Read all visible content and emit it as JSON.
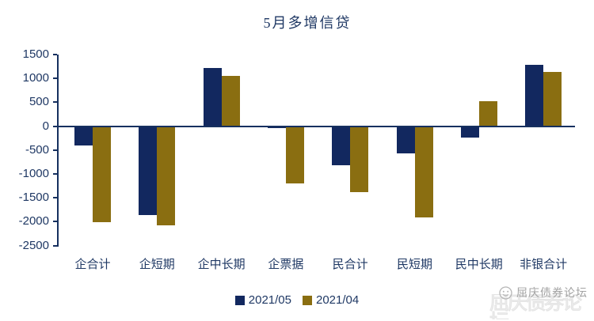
{
  "title": "5月多增信贷",
  "watermark": {
    "text": "屈庆债券论坛",
    "logo": "smiley-logo"
  },
  "colors": {
    "navy": "#12285f",
    "gold": "#8a6e11",
    "text": "#1f3864",
    "axis": "#16305f",
    "watermark_gray": "#a3a3a3"
  },
  "chart_data": {
    "type": "bar",
    "title": "5月多增信贷",
    "categories": [
      "企合计",
      "企短期",
      "企中长期",
      "企票据",
      "民合计",
      "民短期",
      "民中长期",
      "非银合计"
    ],
    "series": [
      {
        "name": "2021/05",
        "color": "#12285f",
        "values": [
          -402,
          -1855,
          1223,
          -48,
          -811,
          -575,
          -236,
          1278
        ]
      },
      {
        "name": "2021/04",
        "color": "#8a6e11",
        "values": [
          -2011,
          -2085,
          1058,
          -1199,
          -1386,
          -1915,
          529,
          1129
        ]
      }
    ],
    "ylim": [
      -2500,
      1500
    ],
    "yticks": [
      1500,
      1000,
      500,
      0,
      -500,
      -1000,
      -1500,
      -2000,
      -2500
    ],
    "xlabel": "",
    "ylabel": "",
    "grid": false,
    "legend_position": "bottom"
  }
}
